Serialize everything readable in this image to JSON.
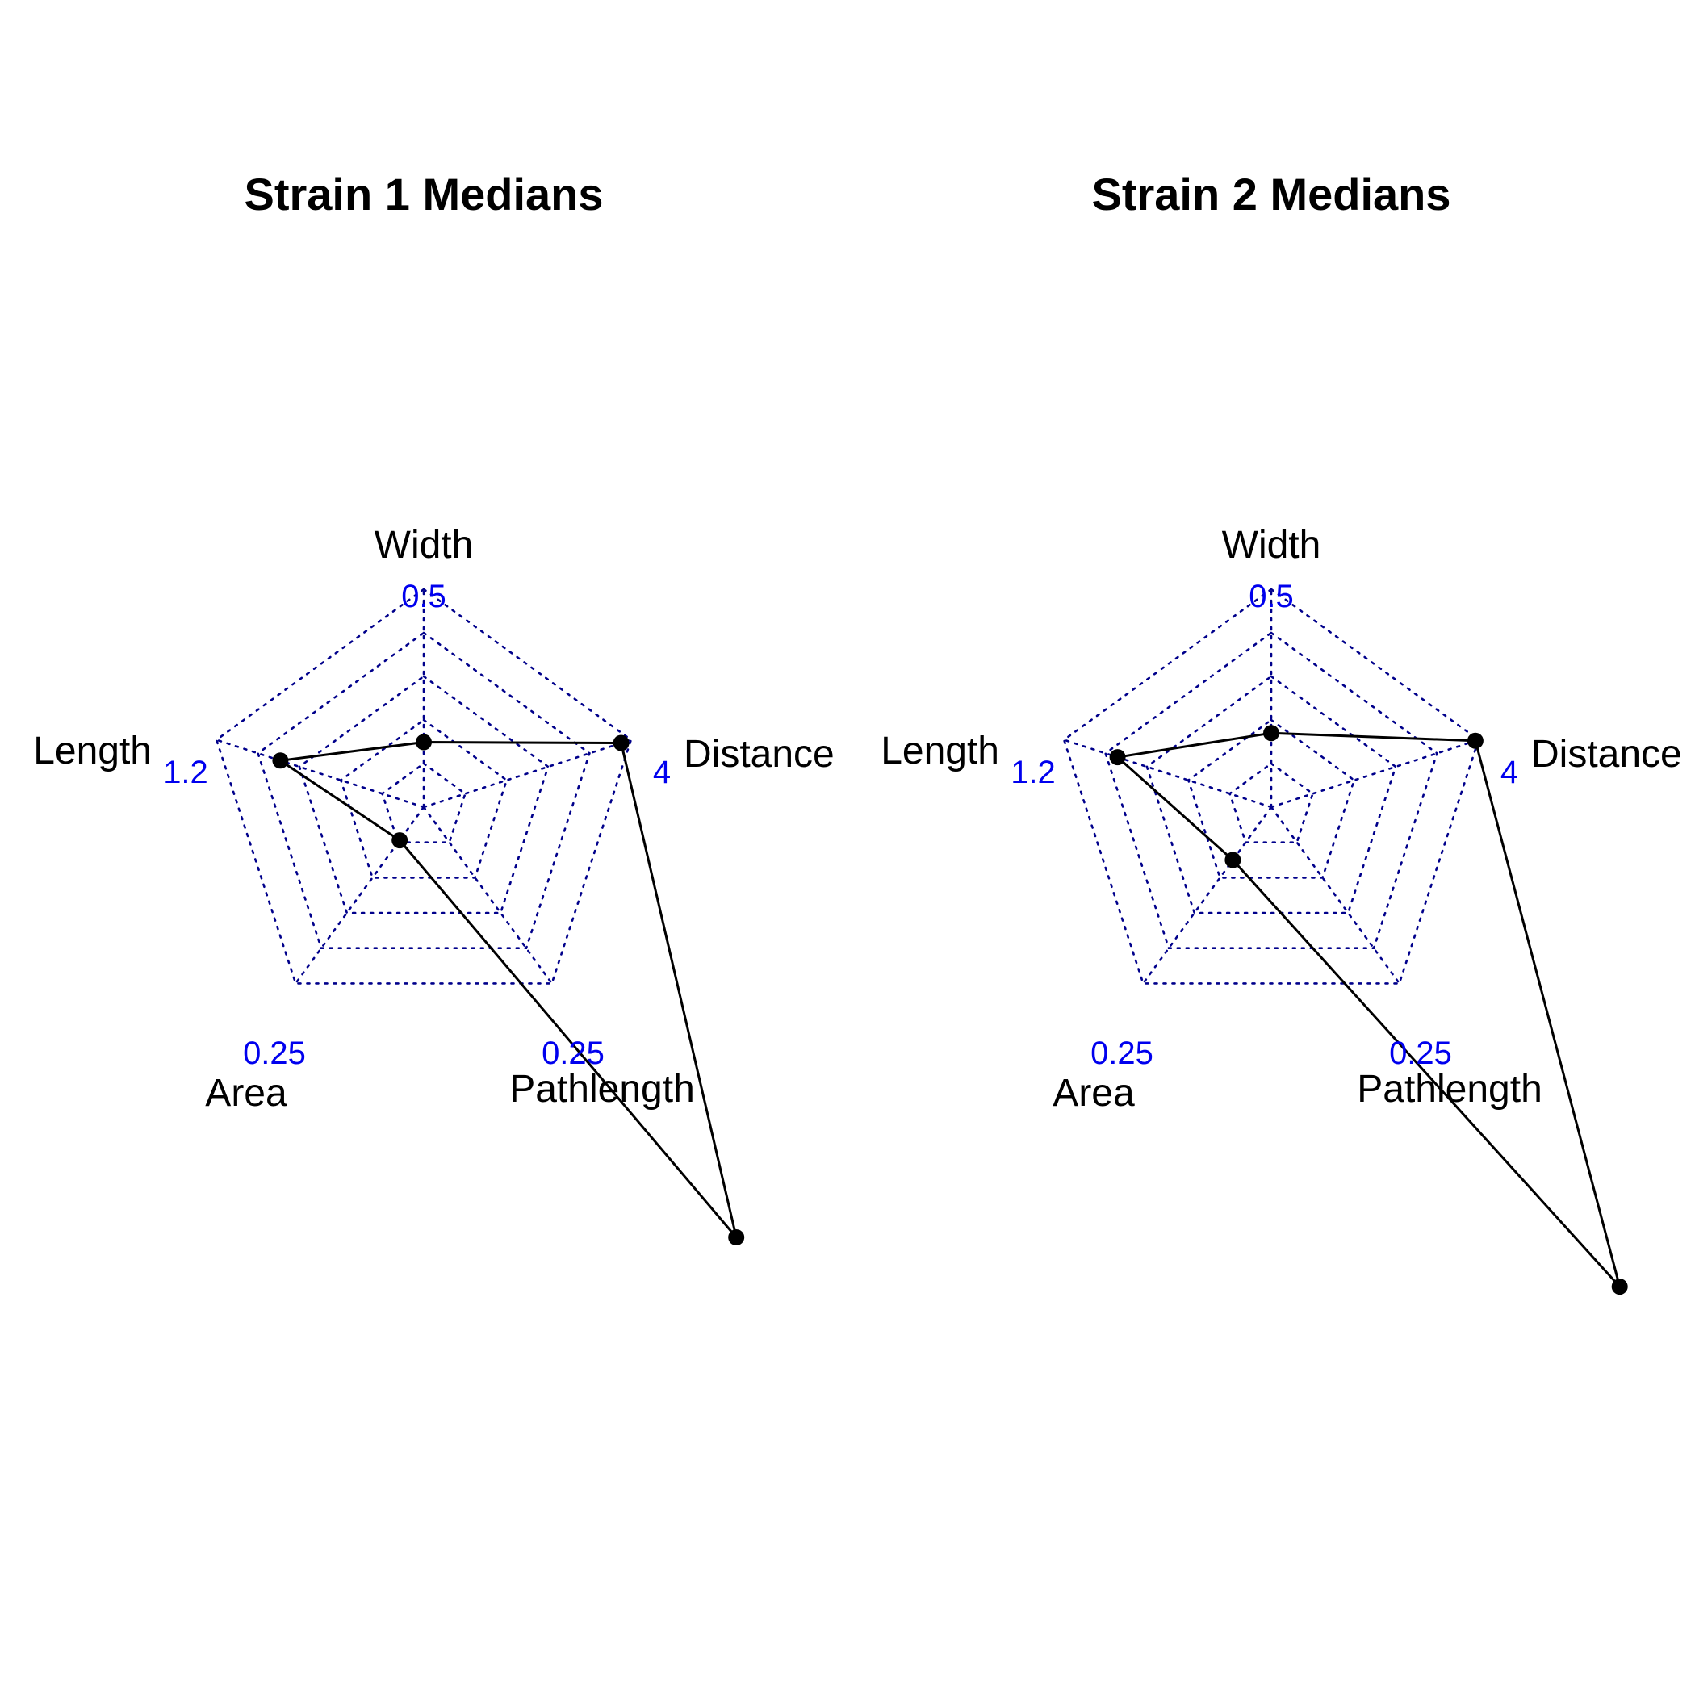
{
  "colors": {
    "grid": "#00008B",
    "max_label": "#0000EE",
    "series": "#000000"
  },
  "chart_data": [
    {
      "type": "radar",
      "title": "Strain 1 Medians",
      "axes": [
        {
          "label": "Width",
          "max_label": "0.5",
          "max": 0.5
        },
        {
          "label": "Distance",
          "max_label": "4",
          "max": 4
        },
        {
          "label": "Pathlength",
          "max_label": "0.25",
          "max": 0.25
        },
        {
          "label": "Area",
          "max_label": "0.25",
          "max": 0.25
        },
        {
          "label": "Length",
          "max_label": "1.2",
          "max": 1.2
        }
      ],
      "grid_levels": 5,
      "values": [
        0.149,
        3.81,
        0.61,
        0.047,
        0.83
      ]
    },
    {
      "type": "radar",
      "title": "Strain 2 Medians",
      "axes": [
        {
          "label": "Width",
          "max_label": "0.5",
          "max": 0.5
        },
        {
          "label": "Distance",
          "max_label": "4",
          "max": 4
        },
        {
          "label": "Pathlength",
          "max_label": "0.25",
          "max": 0.25
        },
        {
          "label": "Area",
          "max_label": "0.25",
          "max": 0.25
        },
        {
          "label": "Length",
          "max_label": "1.2",
          "max": 1.2
        }
      ],
      "grid_levels": 5,
      "values": [
        0.17,
        3.94,
        0.68,
        0.075,
        0.89
      ]
    }
  ]
}
